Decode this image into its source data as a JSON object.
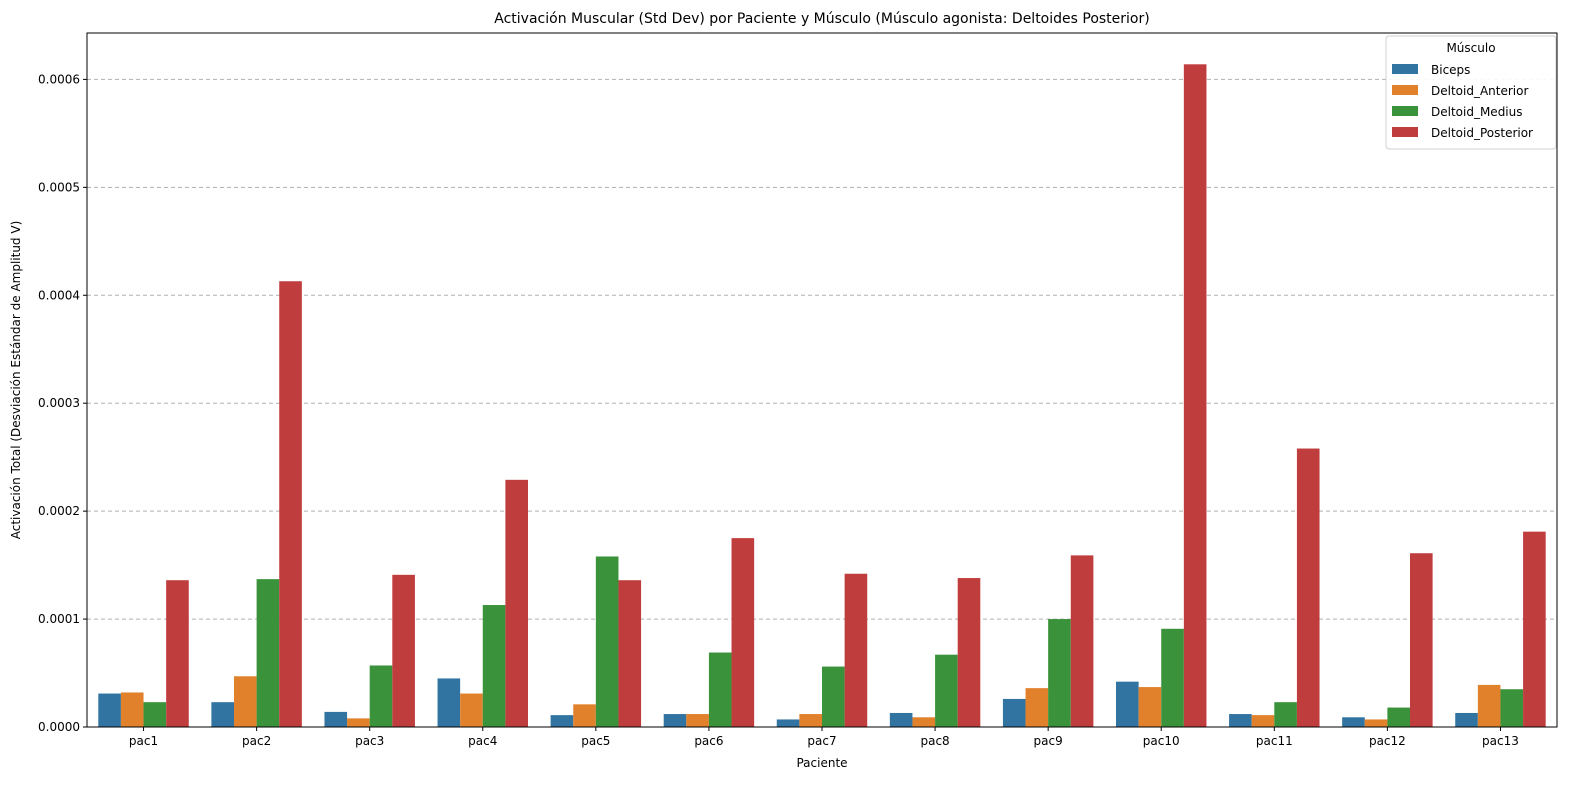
{
  "chart_data": {
    "type": "bar",
    "title": "Activación Muscular (Std Dev) por Paciente y Músculo (Músculo agonista: Deltoides Posterior)",
    "xlabel": "Paciente",
    "ylabel": "Activación Total (Desviación Estándar de Amplitud V)",
    "ylim": [
      0,
      0.000643
    ],
    "yticks": [
      0.0,
      0.0001,
      0.0002,
      0.0003,
      0.0004,
      0.0005,
      0.0006
    ],
    "ytick_labels": [
      "0.0000",
      "0.0001",
      "0.0002",
      "0.0003",
      "0.0004",
      "0.0005",
      "0.0006"
    ],
    "grid": "y-dashed",
    "legend_title": "Músculo",
    "legend_position": "top-right",
    "categories": [
      "pac1",
      "pac2",
      "pac3",
      "pac4",
      "pac5",
      "pac6",
      "pac7",
      "pac8",
      "pac9",
      "pac10",
      "pac11",
      "pac12",
      "pac13"
    ],
    "series": [
      {
        "name": "Biceps",
        "color": "#3274a1",
        "values": [
          3.1e-05,
          2.3e-05,
          1.4e-05,
          4.5e-05,
          1.1e-05,
          1.2e-05,
          7e-06,
          1.3e-05,
          2.6e-05,
          4.2e-05,
          1.2e-05,
          9e-06,
          1.3e-05
        ]
      },
      {
        "name": "Deltoid_Anterior",
        "color": "#e1812c",
        "values": [
          3.2e-05,
          4.7e-05,
          8e-06,
          3.1e-05,
          2.1e-05,
          1.2e-05,
          1.2e-05,
          9e-06,
          3.6e-05,
          3.7e-05,
          1.1e-05,
          7e-06,
          3.9e-05
        ]
      },
      {
        "name": "Deltoid_Medius",
        "color": "#3a923a",
        "values": [
          2.3e-05,
          0.000137,
          5.7e-05,
          0.000113,
          0.000158,
          6.9e-05,
          5.6e-05,
          6.7e-05,
          0.0001,
          9.1e-05,
          2.3e-05,
          1.8e-05,
          3.5e-05
        ]
      },
      {
        "name": "Deltoid_Posterior",
        "color": "#c03d3e",
        "values": [
          0.000136,
          0.000413,
          0.000141,
          0.000229,
          0.000136,
          0.000175,
          0.000142,
          0.000138,
          0.000159,
          0.000614,
          0.000258,
          0.000161,
          0.000181
        ]
      }
    ]
  }
}
